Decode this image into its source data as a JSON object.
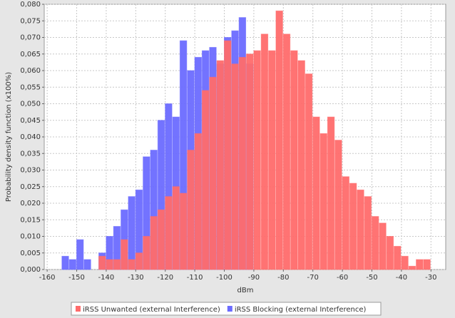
{
  "chart_data": {
    "type": "histogram",
    "x_label": "dBm",
    "y_label": "Probability density function (x100%)",
    "xlim": [
      -161,
      -25
    ],
    "xticks": [
      -160,
      -150,
      -140,
      -130,
      -120,
      -110,
      -100,
      -90,
      -80,
      -70,
      -60,
      -50,
      -40,
      -30
    ],
    "ylim": [
      0,
      0.08
    ],
    "yticks": [
      {
        "value": 0,
        "label": "0,000"
      },
      {
        "value": 0.005,
        "label": "0,005"
      },
      {
        "value": 0.01,
        "label": "0,010"
      },
      {
        "value": 0.015,
        "label": "0,015"
      },
      {
        "value": 0.02,
        "label": "0,020"
      },
      {
        "value": 0.025,
        "label": "0,025"
      },
      {
        "value": 0.03,
        "label": "0,030"
      },
      {
        "value": 0.035,
        "label": "0,035"
      },
      {
        "value": 0.04,
        "label": "0,040"
      },
      {
        "value": 0.045,
        "label": "0,045"
      },
      {
        "value": 0.05,
        "label": "0,050"
      },
      {
        "value": 0.055,
        "label": "0,055"
      },
      {
        "value": 0.06,
        "label": "0,060"
      },
      {
        "value": 0.065,
        "label": "0,065"
      },
      {
        "value": 0.07,
        "label": "0,070"
      },
      {
        "value": 0.075,
        "label": "0,075"
      },
      {
        "value": 0.08,
        "label": "0,080"
      }
    ],
    "grid": true,
    "legend": "bottom",
    "series": [
      {
        "name": "iRSS Unwanted (external Interference)",
        "color": "#ff6b6b",
        "bins": [
          -142.5,
          -140,
          -137.5,
          -135,
          -132.5,
          -130,
          -127.5,
          -125,
          -122.5,
          -120,
          -117.5,
          -115,
          -112.5,
          -110,
          -107.5,
          -105,
          -102.5,
          -100,
          -97.5,
          -95,
          -92.5,
          -90,
          -87.5,
          -85,
          -82.5,
          -80,
          -77.5,
          -75,
          -72.5,
          -70,
          -67.5,
          -65,
          -62.5,
          -60,
          -57.5,
          -55,
          -52.5,
          -50,
          -47.5,
          -45,
          -42.5,
          -40,
          -37.5,
          -35,
          -32.5,
          -30
        ],
        "values": [
          0.004,
          0.003,
          0.003,
          0.009,
          0.003,
          0.005,
          0.01,
          0.016,
          0.018,
          0.022,
          0.025,
          0.023,
          0.036,
          0.041,
          0.054,
          0.058,
          0.063,
          0.069,
          0.062,
          0.064,
          0.065,
          0.066,
          0.071,
          0.066,
          0.078,
          0.071,
          0.066,
          0.063,
          0.059,
          0.046,
          0.041,
          0.046,
          0.039,
          0.028,
          0.026,
          0.024,
          0.022,
          0.016,
          0.014,
          0.01,
          0.007,
          0.004,
          0.001,
          0.003,
          0.003
        ]
      },
      {
        "name": "iRSS Blocking (external Interference)",
        "color": "#6b6bff",
        "bins": [
          -155,
          -152.5,
          -150,
          -147.5,
          -145,
          -142.5,
          -140,
          -137.5,
          -135,
          -132.5,
          -130,
          -127.5,
          -125,
          -122.5,
          -120,
          -117.5,
          -115,
          -112.5,
          -110,
          -107.5,
          -105,
          -102.5,
          -100,
          -97.5,
          -95,
          -92.5,
          -90
        ],
        "values": [
          0.004,
          0.003,
          0.009,
          0.003,
          0,
          0.005,
          0.01,
          0.013,
          0.018,
          0.022,
          0.024,
          0.034,
          0.036,
          0.045,
          0.05,
          0.046,
          0.069,
          0.06,
          0.064,
          0.066,
          0.067,
          0.062,
          0.07,
          0.072,
          0.076,
          0.062
        ]
      }
    ]
  }
}
